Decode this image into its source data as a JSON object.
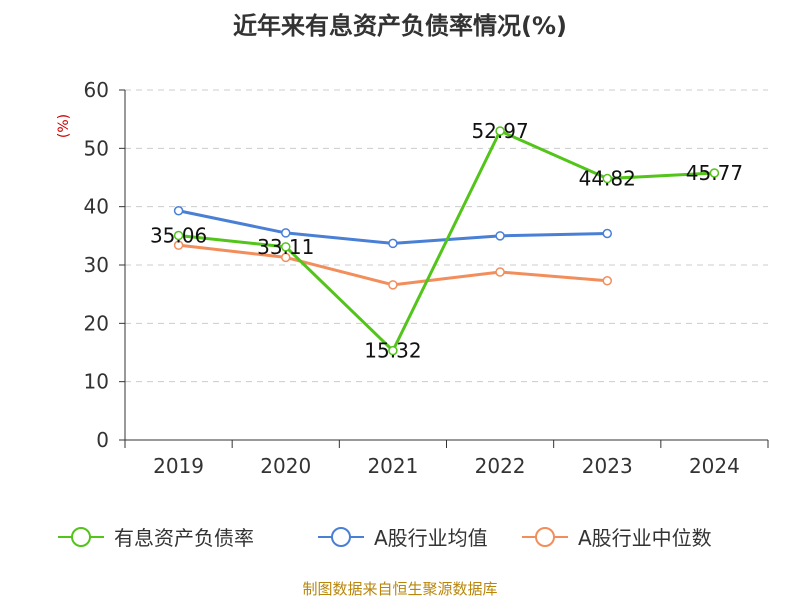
{
  "chart_data": {
    "type": "line",
    "title": "近年来有息资产负债率情况(%)",
    "ylabel": "(%)",
    "xlabel": "",
    "categories": [
      "2019",
      "2020",
      "2021",
      "2022",
      "2023",
      "2024"
    ],
    "ylim": [
      0,
      60
    ],
    "yticks": [
      0,
      10,
      20,
      30,
      40,
      50,
      60
    ],
    "grid": true,
    "legend_position": "bottom",
    "series": [
      {
        "name": "有息资产负债率",
        "color": "#52c41a",
        "values": [
          35.06,
          33.11,
          15.32,
          52.97,
          44.82,
          45.77
        ],
        "labels": [
          "35.06",
          "33.11",
          "15.32",
          "52.97",
          "44.82",
          "45.77"
        ]
      },
      {
        "name": "A股行业均值",
        "color": "#4a7fd6",
        "values": [
          39.3,
          35.5,
          33.7,
          35.0,
          35.4,
          null
        ]
      },
      {
        "name": "A股行业中位数",
        "color": "#f28e5c",
        "values": [
          33.4,
          31.3,
          26.6,
          28.8,
          27.3,
          null
        ]
      }
    ],
    "source": "制图数据来自恒生聚源数据库"
  }
}
